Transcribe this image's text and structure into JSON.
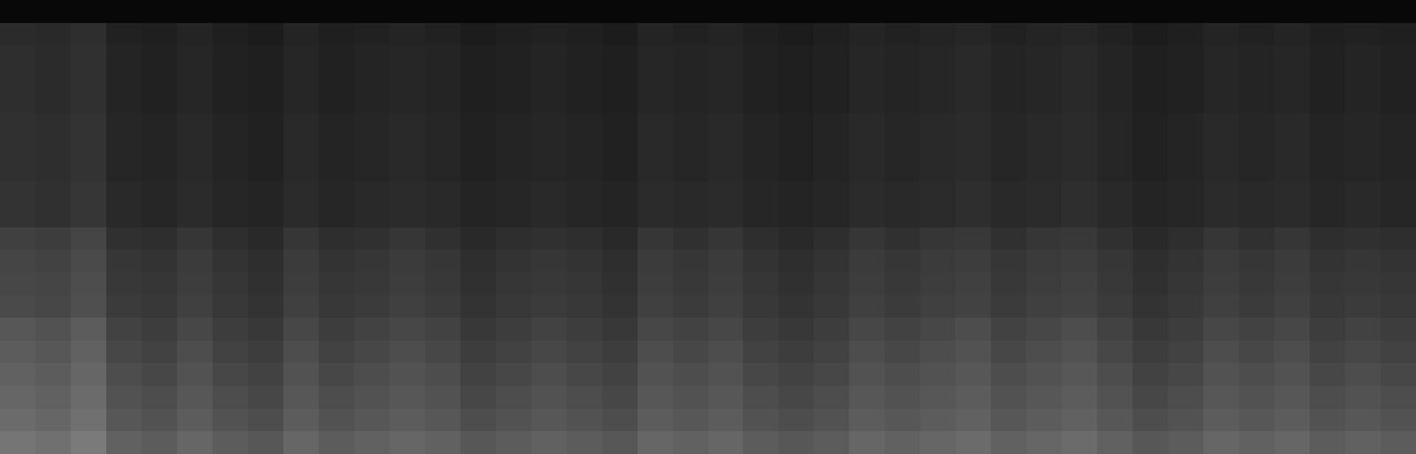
{
  "chart_data": {
    "type": "heatmap",
    "tick_labels": false,
    "zlim": [
      0,
      100
    ],
    "values": [
      [
        3,
        3,
        3,
        3,
        3,
        3,
        3,
        3,
        3,
        3,
        3,
        3,
        3,
        3,
        3,
        3,
        3,
        3,
        3,
        3,
        3,
        3,
        3,
        3,
        3,
        3,
        3,
        3,
        3,
        3,
        3,
        3,
        3,
        3,
        3,
        3,
        3,
        3,
        3,
        3
      ],
      [
        17,
        16,
        18,
        13,
        12,
        14,
        12,
        11,
        14,
        12,
        13,
        14,
        13,
        11,
        12,
        13,
        12,
        11,
        14,
        13,
        14,
        12,
        11,
        12,
        14,
        13,
        14,
        15,
        13,
        14,
        15,
        13,
        11,
        12,
        14,
        13,
        14,
        12,
        13,
        12
      ],
      [
        18,
        17,
        19,
        14,
        13,
        15,
        13,
        12,
        15,
        13,
        14,
        15,
        14,
        12,
        13,
        14,
        13,
        12,
        15,
        14,
        15,
        13,
        12,
        13,
        15,
        14,
        15,
        16,
        14,
        15,
        16,
        14,
        12,
        13,
        15,
        14,
        15,
        13,
        14,
        13
      ],
      [
        18,
        17,
        19,
        14,
        13,
        15,
        13,
        12,
        15,
        13,
        14,
        15,
        14,
        12,
        13,
        14,
        13,
        12,
        15,
        14,
        15,
        13,
        12,
        13,
        15,
        14,
        15,
        16,
        14,
        15,
        16,
        14,
        12,
        13,
        15,
        14,
        15,
        13,
        14,
        13
      ],
      [
        18,
        17,
        19,
        14,
        13,
        15,
        13,
        12,
        15,
        13,
        14,
        15,
        14,
        12,
        13,
        14,
        13,
        12,
        15,
        14,
        15,
        13,
        12,
        13,
        15,
        14,
        15,
        16,
        14,
        15,
        16,
        14,
        12,
        13,
        15,
        14,
        15,
        13,
        14,
        13
      ],
      [
        19,
        18,
        20,
        15,
        14,
        16,
        14,
        13,
        16,
        14,
        15,
        16,
        15,
        13,
        14,
        15,
        14,
        13,
        16,
        15,
        16,
        14,
        13,
        14,
        16,
        15,
        16,
        17,
        15,
        16,
        17,
        15,
        13,
        14,
        16,
        15,
        16,
        14,
        15,
        14
      ],
      [
        19,
        18,
        20,
        15,
        14,
        16,
        14,
        13,
        16,
        14,
        15,
        16,
        15,
        13,
        14,
        15,
        14,
        13,
        16,
        15,
        16,
        14,
        13,
        14,
        16,
        15,
        16,
        17,
        15,
        16,
        17,
        15,
        13,
        14,
        16,
        15,
        16,
        14,
        15,
        14
      ],
      [
        19,
        18,
        20,
        15,
        14,
        16,
        14,
        13,
        16,
        14,
        15,
        16,
        15,
        13,
        14,
        15,
        14,
        13,
        16,
        15,
        16,
        14,
        13,
        14,
        16,
        15,
        16,
        17,
        15,
        16,
        17,
        15,
        13,
        14,
        16,
        15,
        16,
        14,
        15,
        14
      ],
      [
        20,
        19,
        21,
        16,
        15,
        17,
        15,
        14,
        17,
        15,
        16,
        17,
        16,
        14,
        15,
        16,
        15,
        14,
        17,
        16,
        17,
        15,
        14,
        15,
        17,
        16,
        17,
        18,
        16,
        17,
        18,
        16,
        14,
        15,
        17,
        16,
        17,
        15,
        16,
        15
      ],
      [
        20,
        19,
        21,
        16,
        15,
        17,
        15,
        14,
        17,
        15,
        16,
        17,
        16,
        14,
        15,
        16,
        15,
        14,
        17,
        16,
        17,
        15,
        14,
        15,
        17,
        16,
        17,
        18,
        16,
        17,
        18,
        16,
        14,
        15,
        17,
        16,
        17,
        15,
        16,
        15
      ],
      [
        25,
        24,
        27,
        19,
        18,
        21,
        18,
        16,
        21,
        18,
        19,
        21,
        19,
        16,
        18,
        19,
        18,
        16,
        21,
        19,
        21,
        18,
        16,
        18,
        21,
        19,
        21,
        22,
        19,
        21,
        22,
        19,
        16,
        18,
        21,
        19,
        21,
        18,
        19,
        18
      ],
      [
        27,
        26,
        29,
        21,
        20,
        23,
        20,
        18,
        23,
        20,
        21,
        23,
        21,
        18,
        20,
        21,
        20,
        18,
        23,
        21,
        23,
        20,
        18,
        20,
        23,
        21,
        23,
        24,
        21,
        23,
        24,
        21,
        18,
        20,
        23,
        21,
        23,
        20,
        21,
        20
      ],
      [
        28,
        27,
        30,
        22,
        21,
        24,
        21,
        19,
        24,
        21,
        22,
        24,
        22,
        19,
        21,
        22,
        21,
        19,
        24,
        22,
        24,
        21,
        19,
        21,
        24,
        22,
        24,
        25,
        22,
        24,
        25,
        22,
        19,
        21,
        24,
        22,
        24,
        21,
        22,
        21
      ],
      [
        29,
        28,
        31,
        23,
        22,
        25,
        22,
        20,
        25,
        22,
        23,
        25,
        23,
        20,
        22,
        23,
        22,
        20,
        25,
        23,
        25,
        22,
        20,
        22,
        25,
        23,
        25,
        26,
        23,
        25,
        26,
        23,
        20,
        22,
        25,
        23,
        25,
        22,
        23,
        22
      ],
      [
        34,
        32,
        36,
        26,
        24,
        28,
        24,
        22,
        28,
        24,
        26,
        28,
        26,
        22,
        24,
        26,
        24,
        22,
        28,
        26,
        28,
        24,
        22,
        24,
        28,
        26,
        28,
        30,
        26,
        28,
        30,
        26,
        22,
        24,
        28,
        26,
        28,
        24,
        26,
        24
      ],
      [
        36,
        34,
        38,
        28,
        26,
        30,
        26,
        24,
        30,
        26,
        28,
        30,
        28,
        24,
        26,
        28,
        26,
        24,
        30,
        28,
        30,
        26,
        24,
        26,
        30,
        28,
        30,
        32,
        28,
        30,
        32,
        28,
        24,
        26,
        30,
        28,
        30,
        26,
        28,
        26
      ],
      [
        38,
        36,
        40,
        30,
        28,
        32,
        28,
        26,
        32,
        28,
        30,
        32,
        30,
        26,
        28,
        30,
        28,
        26,
        32,
        30,
        32,
        28,
        26,
        28,
        32,
        30,
        32,
        34,
        30,
        32,
        34,
        30,
        26,
        28,
        32,
        30,
        32,
        28,
        30,
        28
      ],
      [
        40,
        38,
        42,
        32,
        30,
        34,
        30,
        28,
        34,
        30,
        32,
        34,
        32,
        28,
        30,
        32,
        30,
        28,
        34,
        32,
        34,
        30,
        28,
        30,
        34,
        32,
        34,
        36,
        32,
        34,
        36,
        32,
        28,
        30,
        34,
        32,
        34,
        30,
        32,
        30
      ],
      [
        42,
        40,
        44,
        34,
        32,
        36,
        32,
        30,
        36,
        32,
        34,
        36,
        34,
        30,
        32,
        34,
        32,
        30,
        36,
        34,
        36,
        32,
        30,
        32,
        36,
        34,
        36,
        38,
        34,
        36,
        38,
        34,
        30,
        32,
        36,
        34,
        36,
        32,
        34,
        32
      ],
      [
        46,
        44,
        48,
        38,
        36,
        40,
        36,
        34,
        40,
        36,
        38,
        40,
        38,
        34,
        36,
        38,
        36,
        34,
        40,
        38,
        40,
        36,
        34,
        36,
        40,
        38,
        40,
        42,
        38,
        40,
        42,
        38,
        34,
        36,
        40,
        38,
        40,
        36,
        38,
        36
      ]
    ]
  }
}
